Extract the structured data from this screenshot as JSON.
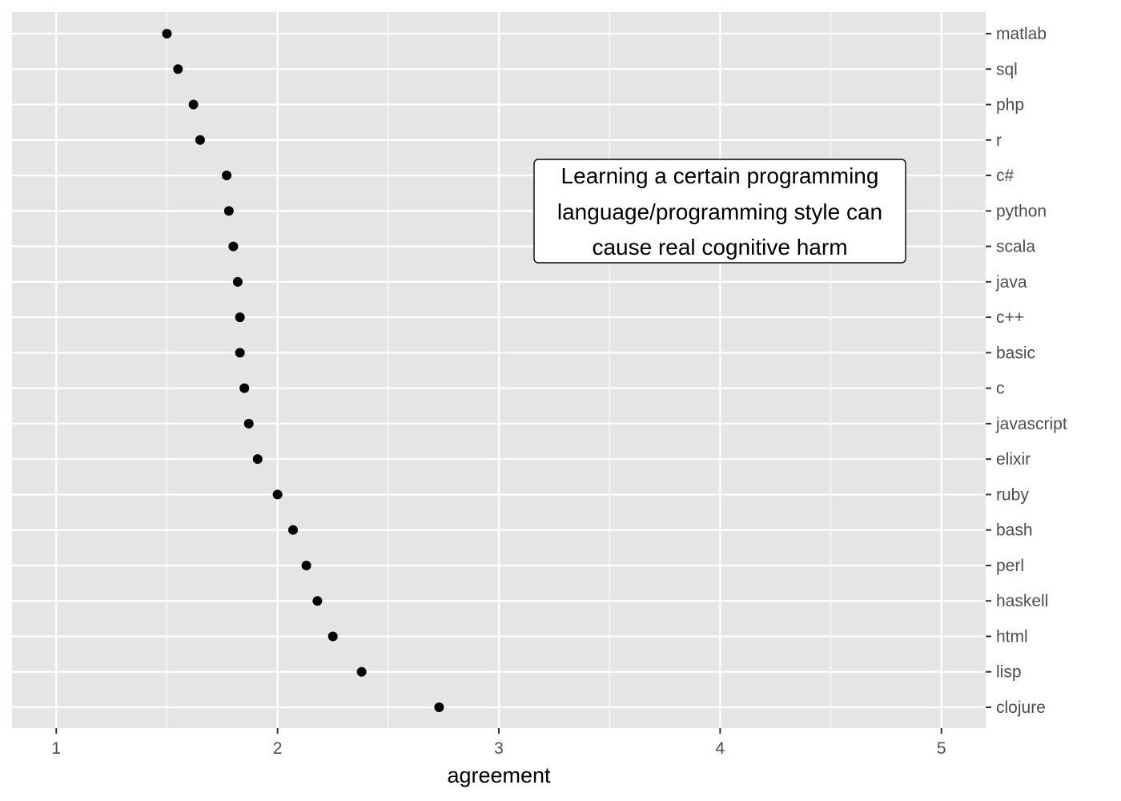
{
  "chart_data": {
    "type": "scatter",
    "categories": [
      "matlab",
      "sql",
      "php",
      "r",
      "c#",
      "python",
      "scala",
      "java",
      "c++",
      "basic",
      "c",
      "javascript",
      "elixir",
      "ruby",
      "bash",
      "perl",
      "haskell",
      "html",
      "lisp",
      "clojure"
    ],
    "values": [
      1.5,
      1.55,
      1.62,
      1.65,
      1.77,
      1.78,
      1.8,
      1.82,
      1.83,
      1.83,
      1.85,
      1.87,
      1.91,
      2.0,
      2.07,
      2.13,
      2.18,
      2.25,
      2.38,
      2.73
    ],
    "xlabel": "agreement",
    "ylabel": "",
    "xlim": [
      0.8,
      5.2
    ],
    "xticks": [
      1,
      2,
      3,
      4,
      5
    ],
    "grid": true,
    "y_axis_side": "right",
    "annotation": [
      "Learning a certain programming",
      "language/programming style can",
      "cause real cognitive harm"
    ],
    "colors": {
      "panel": "#e5e5e5",
      "grid_major": "#ffffff",
      "points": "#000000",
      "tick_text": "#4d4d4d"
    }
  }
}
